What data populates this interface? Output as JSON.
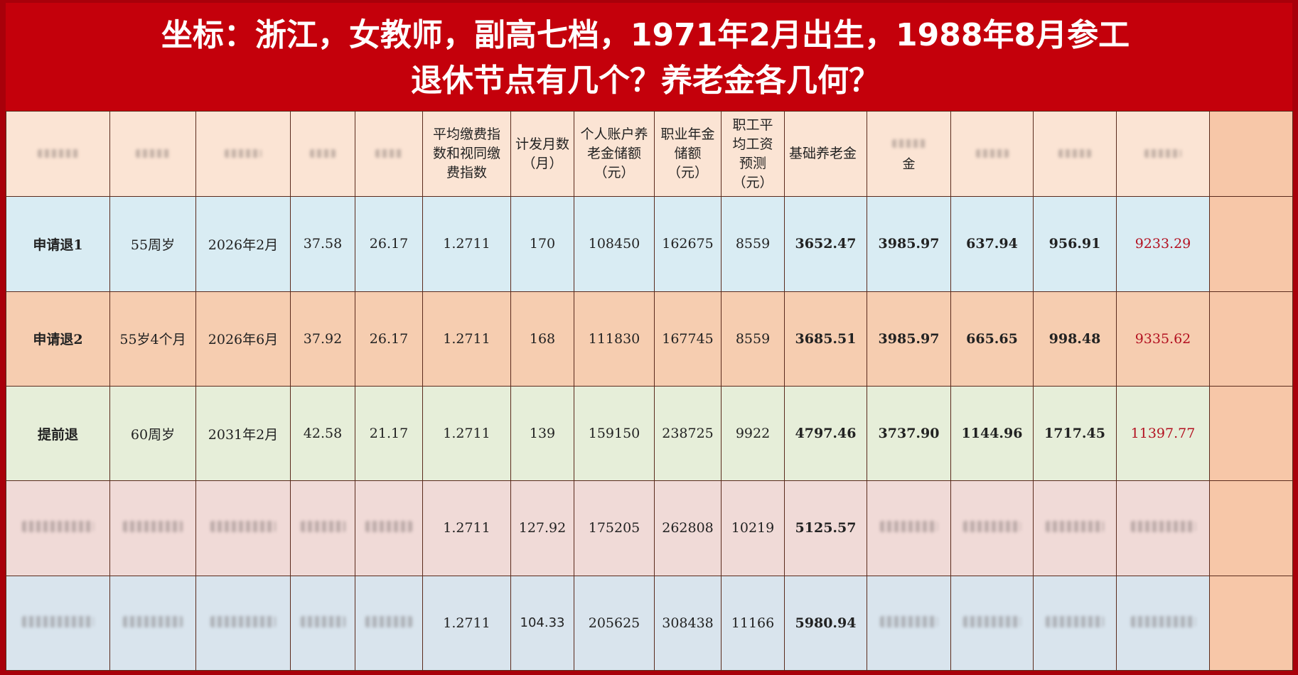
{
  "title": {
    "line1": "坐标：浙江，女教师，副高七档，1971年2月出生，1988年8月参工",
    "line2": "退休节点有几个？养老金各几何？"
  },
  "headers": {
    "avg_index": "平均缴费指数和视同缴费指数",
    "months": "计发月数（月）",
    "personal_account": "个人账户养老金储额（元）",
    "annuity": "职业年金储额（元）",
    "avg_wage": "职工平均工资预测（元）",
    "basic_pension": "基础养老金",
    "col11_tail": "金"
  },
  "rows": [
    {
      "name": "申请退1",
      "age": "55周岁",
      "date": "2026年2月",
      "years_a": "37.58",
      "years_b": "26.17",
      "index": "1.2711",
      "months": "170",
      "personal": "108450",
      "annuity": "162675",
      "wage": "8559",
      "basic": "3652.47",
      "c11": "3985.97",
      "c12": "637.94",
      "c13": "956.91",
      "total": "9233.29"
    },
    {
      "name": "申请退2",
      "age": "55岁4个月",
      "date": "2026年6月",
      "years_a": "37.92",
      "years_b": "26.17",
      "index": "1.2711",
      "months": "168",
      "personal": "111830",
      "annuity": "167745",
      "wage": "8559",
      "basic": "3685.51",
      "c11": "3985.97",
      "c12": "665.65",
      "c13": "998.48",
      "total": "9335.62"
    },
    {
      "name": "提前退",
      "age": "60周岁",
      "date": "2031年2月",
      "years_a": "42.58",
      "years_b": "21.17",
      "index": "1.2711",
      "months": "139",
      "personal": "159150",
      "annuity": "238725",
      "wage": "9922",
      "basic": "4797.46",
      "c11": "3737.90",
      "c12": "1144.96",
      "c13": "1717.45",
      "total": "11397.77"
    },
    {
      "index": "1.2711",
      "months": "127.92",
      "personal": "175205",
      "annuity": "262808",
      "wage": "10219",
      "basic": "5125.57"
    },
    {
      "index": "1.2711",
      "months": "104.33",
      "personal": "205625",
      "annuity": "308438",
      "wage": "11166",
      "basic": "5980.94"
    }
  ],
  "colors": {
    "title_bg": "#c4000b",
    "total_text": "#b31020"
  }
}
